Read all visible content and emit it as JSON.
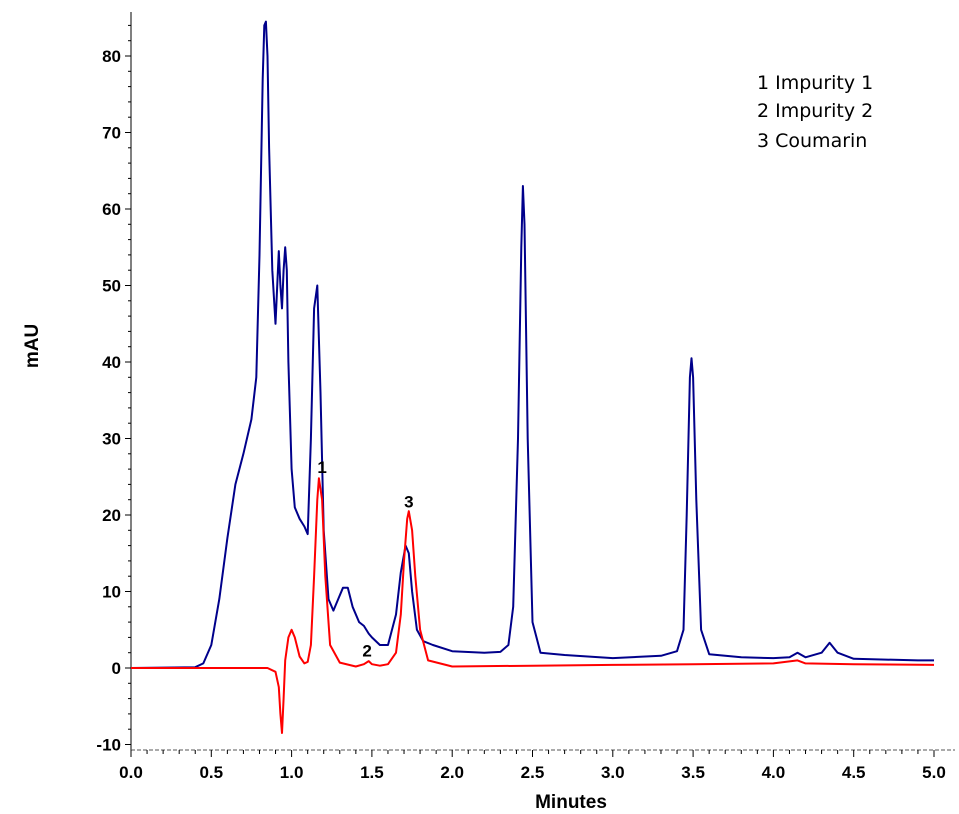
{
  "chart_data": {
    "type": "line",
    "title": "",
    "xlabel": "Minutes",
    "ylabel": "mAU",
    "xlim": [
      0.0,
      5.0
    ],
    "ylim": [
      -10,
      85
    ],
    "x_ticks": [
      "0.0",
      "0.5",
      "1.0",
      "1.5",
      "2.0",
      "2.5",
      "3.0",
      "3.5",
      "4.0",
      "4.5",
      "5.0"
    ],
    "y_ticks": [
      "-10",
      "0",
      "10",
      "20",
      "30",
      "40",
      "50",
      "60",
      "70",
      "80"
    ],
    "grid": false,
    "legend": {
      "placement": "top-right",
      "entries": [
        "1 Impurity 1",
        "2 Impurity 2",
        "3 Coumarin"
      ]
    },
    "peak_labels": [
      {
        "text": "1",
        "x": 1.19,
        "y": 25.5
      },
      {
        "text": "2",
        "x": 1.47,
        "y": 1.5
      },
      {
        "text": "3",
        "x": 1.73,
        "y": 21.0
      }
    ],
    "series": [
      {
        "color": "#00008b",
        "x": [
          0.0,
          0.4,
          0.45,
          0.5,
          0.55,
          0.6,
          0.65,
          0.7,
          0.75,
          0.78,
          0.8,
          0.82,
          0.83,
          0.84,
          0.85,
          0.86,
          0.88,
          0.9,
          0.92,
          0.93,
          0.94,
          0.95,
          0.96,
          0.97,
          0.98,
          1.0,
          1.02,
          1.05,
          1.08,
          1.1,
          1.12,
          1.14,
          1.16,
          1.18,
          1.2,
          1.23,
          1.26,
          1.29,
          1.32,
          1.35,
          1.38,
          1.42,
          1.45,
          1.48,
          1.5,
          1.55,
          1.6,
          1.65,
          1.68,
          1.71,
          1.73,
          1.75,
          1.78,
          1.82,
          1.88,
          2.0,
          2.2,
          2.3,
          2.35,
          2.38,
          2.41,
          2.43,
          2.44,
          2.45,
          2.47,
          2.5,
          2.55,
          2.7,
          3.0,
          3.3,
          3.4,
          3.44,
          3.46,
          3.48,
          3.49,
          3.5,
          3.52,
          3.55,
          3.6,
          3.8,
          4.0,
          4.1,
          4.15,
          4.2,
          4.3,
          4.35,
          4.4,
          4.5,
          4.7,
          4.9,
          5.0
        ],
        "y": [
          0.0,
          0.1,
          0.6,
          3.0,
          9.0,
          17.0,
          24.0,
          28.0,
          32.5,
          38.0,
          54.0,
          77.0,
          84.0,
          84.5,
          80.0,
          68.0,
          52.0,
          45.0,
          54.5,
          50.0,
          47.0,
          52.0,
          55.0,
          52.0,
          40.0,
          26.0,
          21.0,
          19.5,
          18.5,
          17.5,
          30.0,
          47.0,
          50.0,
          36.0,
          18.0,
          9.0,
          7.5,
          9.0,
          10.5,
          10.5,
          8.0,
          6.0,
          5.5,
          4.5,
          4.0,
          3.0,
          3.0,
          7.0,
          12.5,
          16.0,
          15.0,
          10.0,
          5.0,
          3.5,
          3.0,
          2.2,
          2.0,
          2.1,
          3.0,
          8.0,
          30.0,
          55.0,
          63.0,
          58.0,
          30.0,
          6.0,
          2.0,
          1.7,
          1.3,
          1.6,
          2.2,
          5.0,
          20.0,
          38.0,
          40.5,
          38.0,
          22.0,
          5.0,
          1.8,
          1.4,
          1.3,
          1.4,
          2.0,
          1.4,
          2.0,
          3.3,
          2.0,
          1.2,
          1.1,
          1.0,
          1.0
        ]
      },
      {
        "color": "#ff0000",
        "x": [
          0.0,
          0.5,
          0.85,
          0.9,
          0.92,
          0.93,
          0.94,
          0.95,
          0.96,
          0.98,
          1.0,
          1.02,
          1.05,
          1.08,
          1.1,
          1.12,
          1.14,
          1.16,
          1.17,
          1.19,
          1.21,
          1.24,
          1.3,
          1.4,
          1.45,
          1.48,
          1.5,
          1.55,
          1.6,
          1.65,
          1.68,
          1.7,
          1.72,
          1.73,
          1.75,
          1.77,
          1.8,
          1.85,
          2.0,
          2.5,
          3.0,
          3.5,
          4.0,
          4.15,
          4.2,
          4.5,
          5.0
        ],
        "y": [
          0.0,
          0.0,
          0.0,
          -0.5,
          -2.5,
          -6.0,
          -8.5,
          -4.0,
          1.0,
          4.0,
          5.0,
          4.0,
          1.5,
          0.6,
          0.8,
          3.0,
          12.0,
          22.0,
          24.8,
          22.0,
          12.0,
          3.0,
          0.7,
          0.2,
          0.5,
          0.9,
          0.5,
          0.3,
          0.5,
          2.0,
          7.0,
          14.0,
          19.5,
          20.5,
          18.0,
          12.0,
          5.0,
          1.0,
          0.2,
          0.3,
          0.4,
          0.5,
          0.6,
          1.0,
          0.6,
          0.5,
          0.4
        ]
      }
    ]
  }
}
